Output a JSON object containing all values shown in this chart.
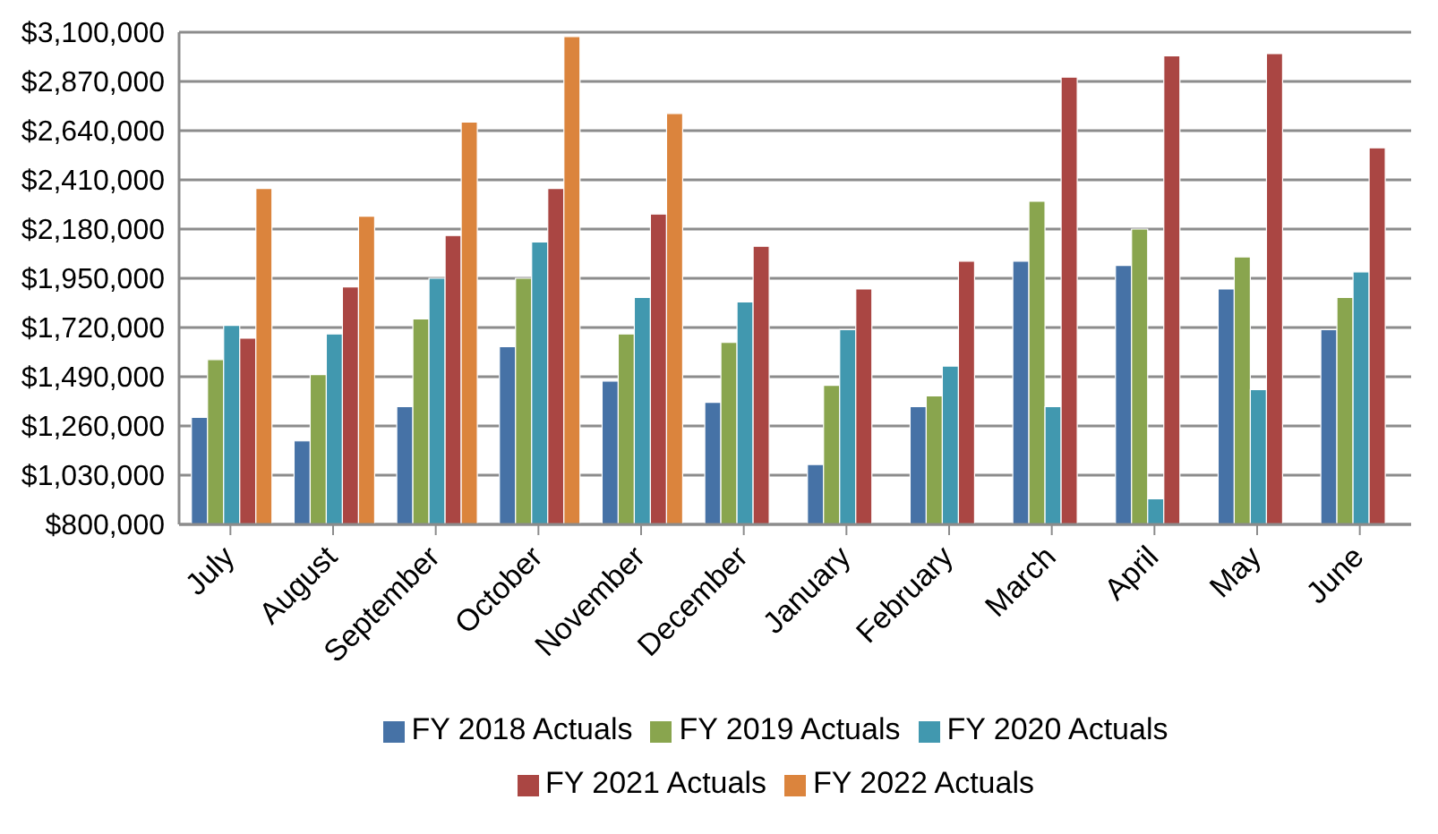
{
  "chart_data": {
    "type": "bar",
    "categories": [
      "July",
      "August",
      "September",
      "October",
      "November",
      "December",
      "January",
      "February",
      "March",
      "April",
      "May",
      "June"
    ],
    "series": [
      {
        "name": "FY 2018 Actuals",
        "color": "#4672a6",
        "values": [
          1300000,
          1190000,
          1350000,
          1630000,
          1470000,
          1370000,
          1080000,
          1350000,
          2030000,
          2010000,
          1900000,
          1710000
        ]
      },
      {
        "name": "FY 2019 Actuals",
        "color": "#89a54e",
        "values": [
          1570000,
          1500000,
          1760000,
          1950000,
          1690000,
          1650000,
          1450000,
          1400000,
          2310000,
          2180000,
          2050000,
          1860000
        ]
      },
      {
        "name": "FY 2020 Actuals",
        "color": "#4198af",
        "values": [
          1730000,
          1690000,
          1950000,
          2120000,
          1860000,
          1840000,
          1710000,
          1540000,
          1350000,
          920000,
          1430000,
          1980000
        ]
      },
      {
        "name": "FY 2021 Actuals",
        "color": "#aa4643",
        "values": [
          1670000,
          1910000,
          2150000,
          2370000,
          2250000,
          2100000,
          1900000,
          2030000,
          2890000,
          2990000,
          3000000,
          2560000
        ]
      },
      {
        "name": "FY 2022 Actuals",
        "color": "#db843d",
        "values": [
          2370000,
          2240000,
          2680000,
          3080000,
          2720000,
          null,
          null,
          null,
          null,
          null,
          null,
          null
        ]
      }
    ],
    "ylim": [
      800000,
      3100000
    ],
    "yticks": [
      {
        "value": 800000,
        "label": "$800,000"
      },
      {
        "value": 1030000,
        "label": "$1,030,000"
      },
      {
        "value": 1260000,
        "label": "$1,260,000"
      },
      {
        "value": 1490000,
        "label": "$1,490,000"
      },
      {
        "value": 1720000,
        "label": "$1,720,000"
      },
      {
        "value": 1950000,
        "label": "$1,950,000"
      },
      {
        "value": 2180000,
        "label": "$2,180,000"
      },
      {
        "value": 2410000,
        "label": "$2,410,000"
      },
      {
        "value": 2640000,
        "label": "$2,640,000"
      },
      {
        "value": 2870000,
        "label": "$2,870,000"
      },
      {
        "value": 3100000,
        "label": "$3,100,000"
      }
    ],
    "grid": "y",
    "legend": "bottom"
  }
}
